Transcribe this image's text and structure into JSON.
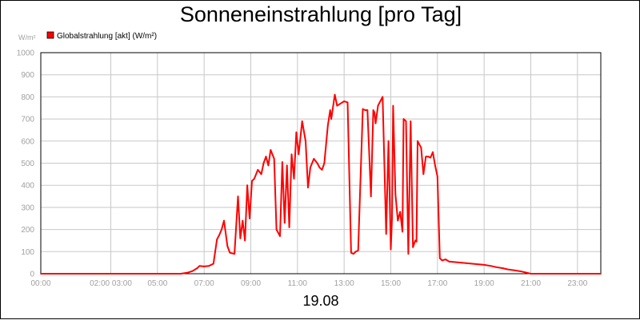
{
  "chart_data": {
    "type": "line",
    "title": "Sonneneinstrahlung [pro Tag]",
    "date_label": "19.08",
    "ylabel": "W/m²",
    "ylim": [
      0,
      1000
    ],
    "y_ticks": [
      0,
      100,
      200,
      300,
      400,
      500,
      600,
      700,
      800,
      900,
      1000
    ],
    "x_range_hours": [
      0,
      24
    ],
    "x_ticks": [
      {
        "hour": 0,
        "label": "00:00"
      },
      {
        "hour": 3,
        "label": "02:00 03:00"
      },
      {
        "hour": 5,
        "label": "05:00"
      },
      {
        "hour": 7,
        "label": "07:00"
      },
      {
        "hour": 9,
        "label": "09:00"
      },
      {
        "hour": 11,
        "label": "11:00"
      },
      {
        "hour": 13,
        "label": "13:00"
      },
      {
        "hour": 15,
        "label": "15:00"
      },
      {
        "hour": 17,
        "label": "17:00"
      },
      {
        "hour": 19,
        "label": "19:00"
      },
      {
        "hour": 21,
        "label": "21:00"
      },
      {
        "hour": 23,
        "label": "23:00"
      }
    ],
    "grid": true,
    "legend_position": "top-left",
    "series": [
      {
        "name": "Globalstrahlung [akt] (W/m²)",
        "color": "#ff0000",
        "x": [
          0,
          6.0,
          6.3,
          6.5,
          6.7,
          6.8,
          7.0,
          7.2,
          7.4,
          7.55,
          7.65,
          7.75,
          7.85,
          8.0,
          8.1,
          8.3,
          8.45,
          8.55,
          8.65,
          8.75,
          8.85,
          8.95,
          9.05,
          9.15,
          9.3,
          9.45,
          9.55,
          9.65,
          9.75,
          9.85,
          10.0,
          10.1,
          10.25,
          10.35,
          10.45,
          10.55,
          10.65,
          10.75,
          10.85,
          10.95,
          11.05,
          11.2,
          11.35,
          11.45,
          11.55,
          11.7,
          11.85,
          11.95,
          12.05,
          12.15,
          12.3,
          12.4,
          12.45,
          12.6,
          12.7,
          12.85,
          13.0,
          13.15,
          13.3,
          13.4,
          13.5,
          13.6,
          13.8,
          13.9,
          14.0,
          14.15,
          14.25,
          14.3,
          14.35,
          14.45,
          14.5,
          14.55,
          14.65,
          14.8,
          14.9,
          15.0,
          15.05,
          15.1,
          15.2,
          15.3,
          15.4,
          15.5,
          15.55,
          15.65,
          15.75,
          15.85,
          15.95,
          16.05,
          16.1,
          16.15,
          16.3,
          16.4,
          16.5,
          16.6,
          16.7,
          16.8,
          16.9,
          17.0,
          17.1,
          17.2,
          17.35,
          17.5,
          18.0,
          18.5,
          19.0,
          19.3,
          19.5,
          19.8,
          20.0,
          20.3,
          20.6,
          20.8,
          21.0,
          24.0
        ],
        "values": [
          0,
          0,
          5,
          12,
          25,
          35,
          33,
          35,
          45,
          155,
          175,
          200,
          240,
          125,
          95,
          90,
          350,
          160,
          240,
          150,
          400,
          250,
          420,
          430,
          470,
          450,
          500,
          530,
          490,
          560,
          520,
          200,
          170,
          505,
          230,
          490,
          210,
          540,
          430,
          640,
          540,
          690,
          600,
          390,
          480,
          520,
          500,
          480,
          470,
          500,
          670,
          740,
          700,
          810,
          760,
          770,
          780,
          775,
          95,
          90,
          100,
          105,
          745,
          740,
          740,
          350,
          740,
          730,
          680,
          760,
          770,
          780,
          800,
          180,
          600,
          110,
          250,
          760,
          360,
          240,
          280,
          190,
          700,
          690,
          90,
          690,
          120,
          150,
          145,
          600,
          570,
          450,
          530,
          530,
          525,
          550,
          490,
          440,
          70,
          60,
          65,
          55,
          50,
          45,
          40,
          35,
          30,
          25,
          20,
          15,
          10,
          5,
          0,
          0
        ]
      }
    ]
  }
}
